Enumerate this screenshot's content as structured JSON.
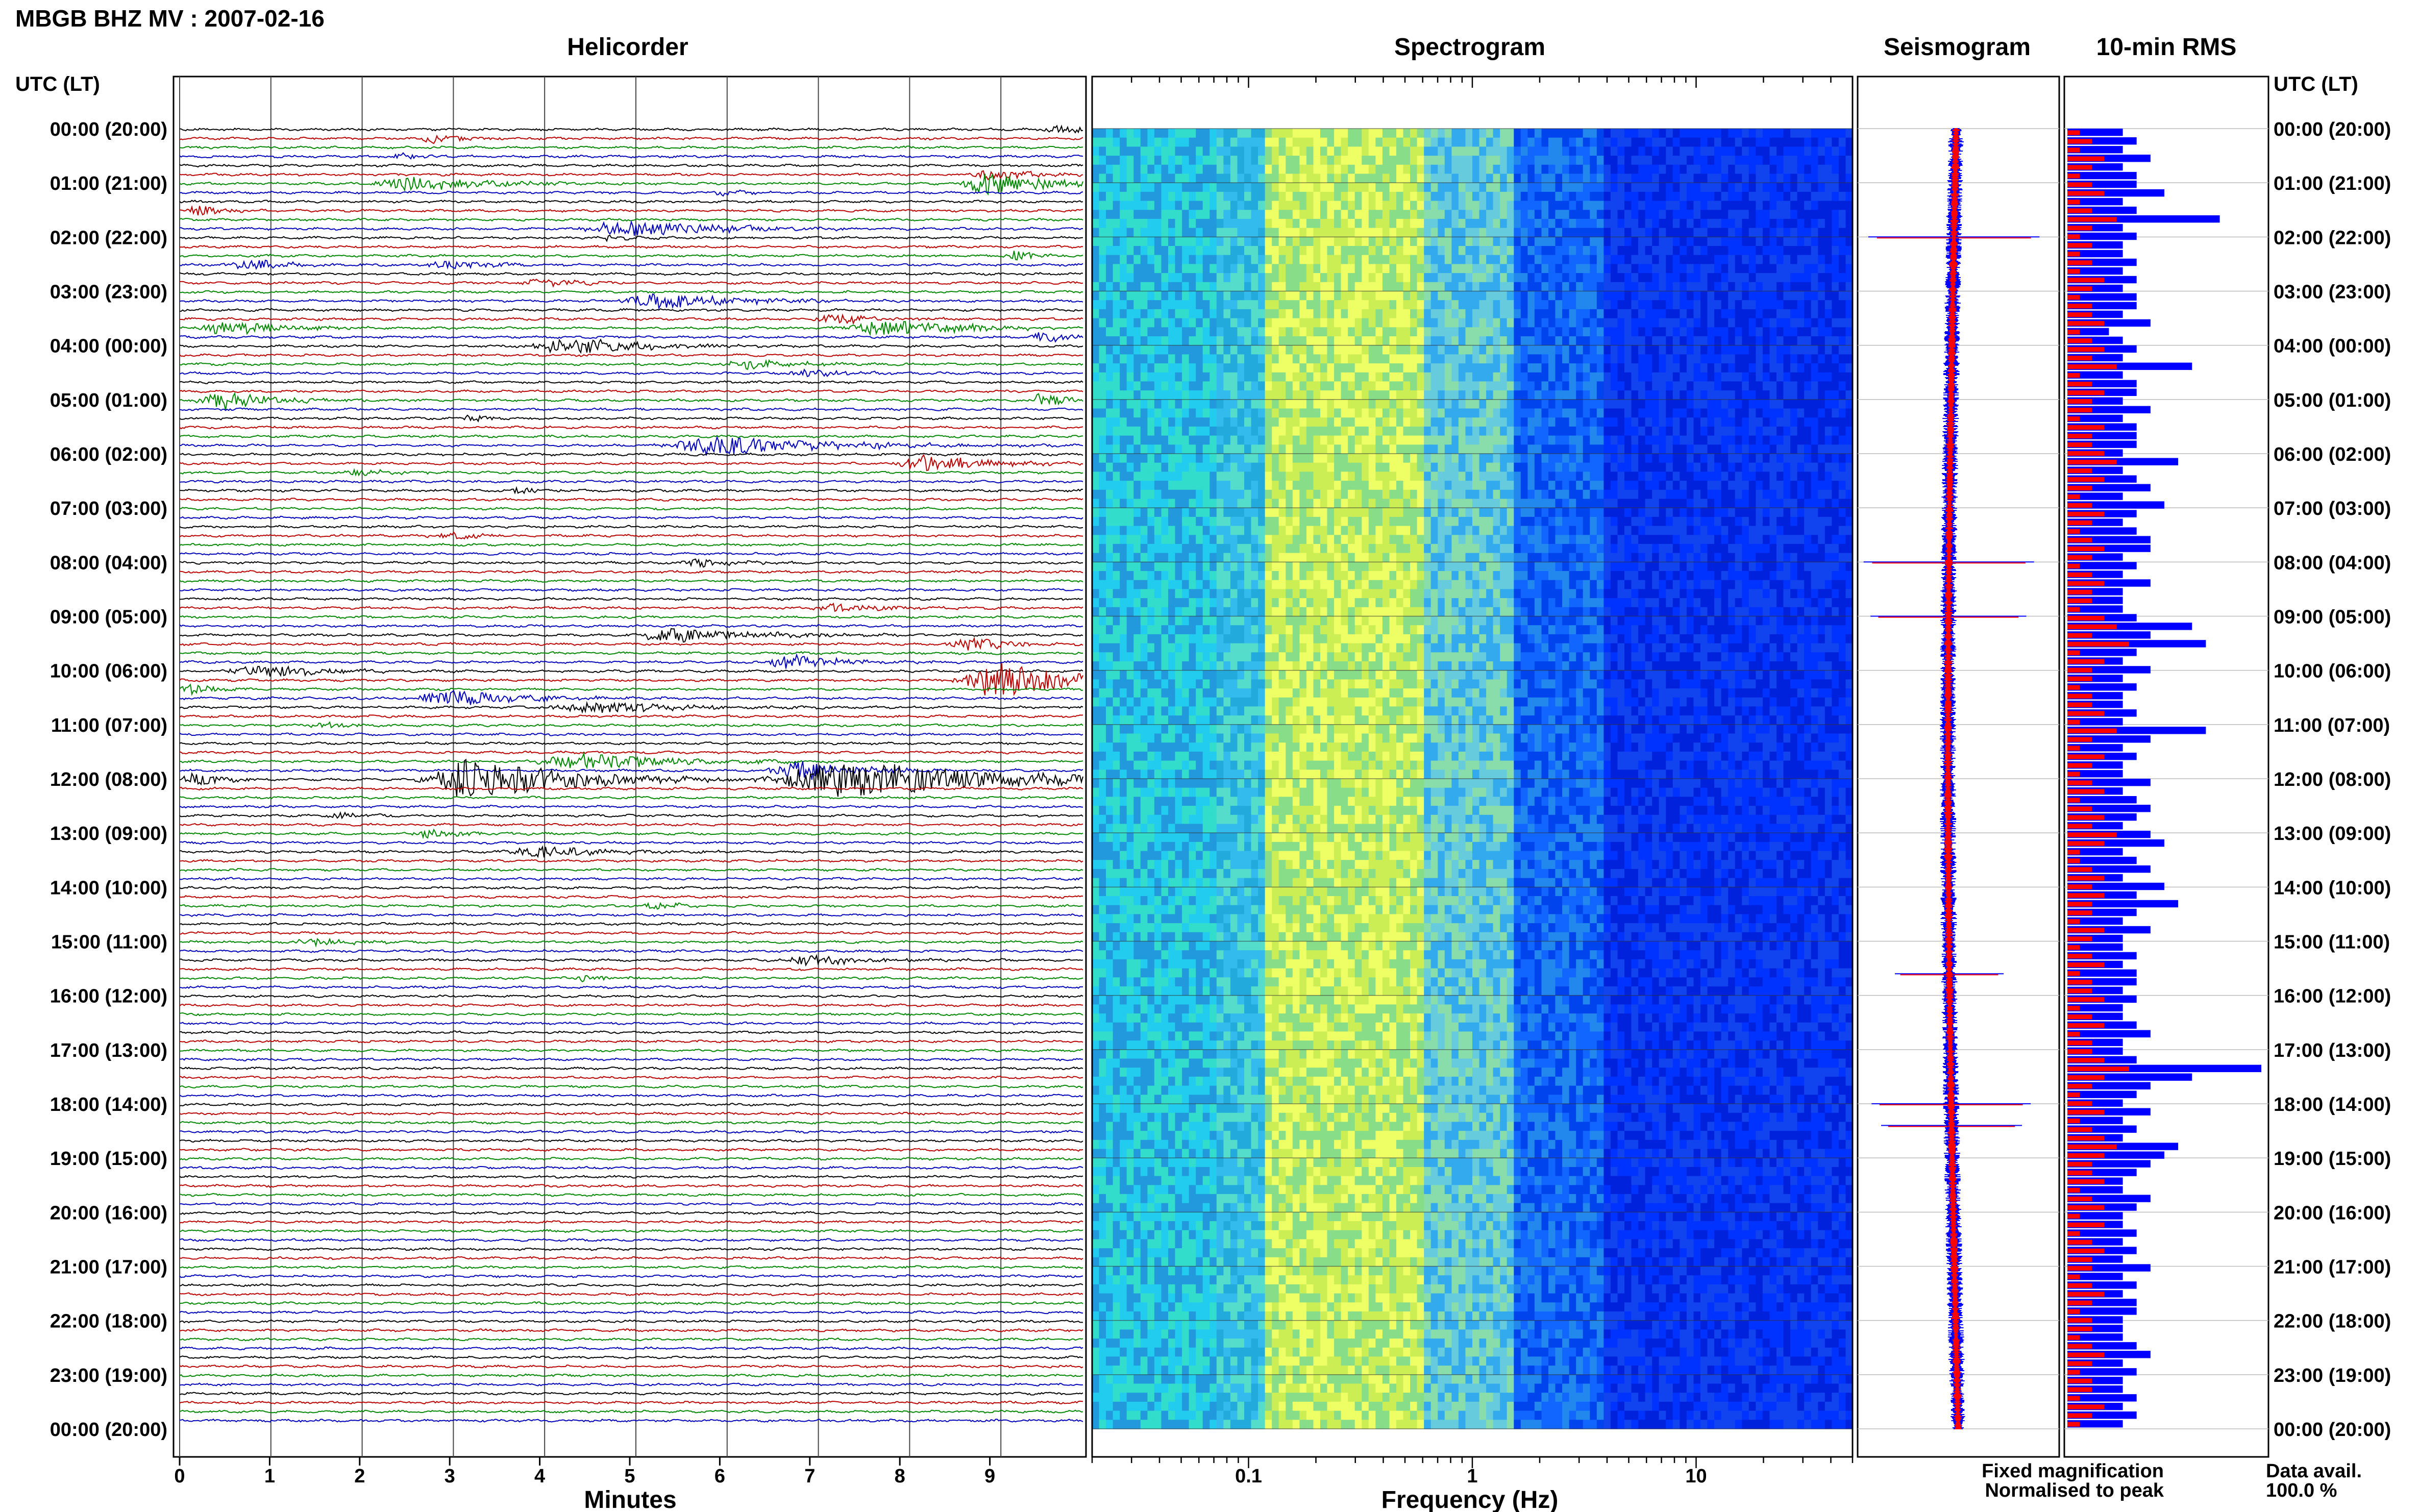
{
  "header": {
    "station_title": "MBGB BHZ MV : 2007-02-16"
  },
  "panels": {
    "helicorder": "Helicorder",
    "spectrogram": "Spectrogram",
    "seismogram": "Seismogram",
    "rms": "10-min RMS"
  },
  "axis": {
    "utc_header": "UTC (LT)",
    "minutes_label": "Minutes",
    "frequency_label": "Frequency (Hz)"
  },
  "legend": {
    "fixed": "Fixed magnification",
    "normalised": "Normalised to peak",
    "fixed_color": "#0000ff",
    "normalised_color": "#ff0000"
  },
  "data_avail": {
    "label": "Data avail.",
    "value": "100.0 %"
  },
  "chart_data": [
    {
      "type": "line",
      "name": "Helicorder",
      "x_ticks": [
        "0",
        "1",
        "2",
        "3",
        "4",
        "5",
        "6",
        "7",
        "8",
        "9"
      ],
      "x_range": [
        0,
        10
      ],
      "y_ticks": [
        "00:00 (20:00)",
        "01:00 (21:00)",
        "02:00 (22:00)",
        "03:00 (23:00)",
        "04:00 (00:00)",
        "05:00 (01:00)",
        "06:00 (02:00)",
        "07:00 (03:00)",
        "08:00 (04:00)",
        "09:00 (05:00)",
        "10:00 (06:00)",
        "11:00 (07:00)",
        "12:00 (08:00)",
        "13:00 (09:00)",
        "14:00 (10:00)",
        "15:00 (11:00)",
        "16:00 (12:00)",
        "17:00 (13:00)",
        "18:00 (14:00)",
        "19:00 (15:00)",
        "20:00 (16:00)",
        "21:00 (17:00)",
        "22:00 (18:00)",
        "23:00 (19:00)",
        "00:00 (20:00)"
      ],
      "trace_colors": [
        "#000000",
        "#bb0000",
        "#008800",
        "#0000bb"
      ],
      "traces_per_hour": 6,
      "events": [
        {
          "row": 0,
          "minute": 9.8,
          "amp": 1.4,
          "width": 0.4
        },
        {
          "row": 1,
          "minute": 2.8,
          "amp": 1.3,
          "width": 0.4
        },
        {
          "row": 3,
          "minute": 2.5,
          "amp": 1.2,
          "width": 0.3
        },
        {
          "row": 5,
          "minute": 9.0,
          "amp": 1.8,
          "width": 0.6
        },
        {
          "row": 6,
          "minute": 2.6,
          "amp": 2.2,
          "width": 1.0
        },
        {
          "row": 6,
          "minute": 9.0,
          "amp": 4.0,
          "width": 0.7
        },
        {
          "row": 7,
          "minute": 6.0,
          "amp": 1.2,
          "width": 0.3
        },
        {
          "row": 9,
          "minute": 0.2,
          "amp": 2.0,
          "width": 0.3
        },
        {
          "row": 11,
          "minute": 5.0,
          "amp": 2.6,
          "width": 1.2
        },
        {
          "row": 12,
          "minute": 4.8,
          "amp": 1.3,
          "width": 0.3
        },
        {
          "row": 14,
          "minute": 9.3,
          "amp": 1.6,
          "width": 0.3
        },
        {
          "row": 15,
          "minute": 3.0,
          "amp": 1.5,
          "width": 0.7
        },
        {
          "row": 15,
          "minute": 0.8,
          "amp": 1.6,
          "width": 0.6
        },
        {
          "row": 17,
          "minute": 4.0,
          "amp": 1.4,
          "width": 0.5
        },
        {
          "row": 19,
          "minute": 5.3,
          "amp": 2.6,
          "width": 1.0
        },
        {
          "row": 21,
          "minute": 7.3,
          "amp": 1.5,
          "width": 0.6
        },
        {
          "row": 22,
          "minute": 0.5,
          "amp": 3.2,
          "width": 0.6
        },
        {
          "row": 22,
          "minute": 7.8,
          "amp": 2.8,
          "width": 1.0
        },
        {
          "row": 23,
          "minute": 9.6,
          "amp": 2.0,
          "width": 0.3
        },
        {
          "row": 24,
          "minute": 4.3,
          "amp": 2.8,
          "width": 1.0
        },
        {
          "row": 26,
          "minute": 6.3,
          "amp": 1.6,
          "width": 0.6
        },
        {
          "row": 27,
          "minute": 7.0,
          "amp": 1.3,
          "width": 0.5
        },
        {
          "row": 30,
          "minute": 0.5,
          "amp": 3.0,
          "width": 0.6
        },
        {
          "row": 30,
          "minute": 9.6,
          "amp": 2.6,
          "width": 0.3
        },
        {
          "row": 32,
          "minute": 3.2,
          "amp": 1.2,
          "width": 0.3
        },
        {
          "row": 35,
          "minute": 6.0,
          "amp": 3.2,
          "width": 1.4
        },
        {
          "row": 37,
          "minute": 8.3,
          "amp": 2.6,
          "width": 0.8
        },
        {
          "row": 38,
          "minute": 2.0,
          "amp": 1.3,
          "width": 0.4
        },
        {
          "row": 40,
          "minute": 3.8,
          "amp": 1.3,
          "width": 0.3
        },
        {
          "row": 45,
          "minute": 3.0,
          "amp": 1.2,
          "width": 0.5
        },
        {
          "row": 48,
          "minute": 5.8,
          "amp": 1.4,
          "width": 0.5
        },
        {
          "row": 53,
          "minute": 7.3,
          "amp": 1.5,
          "width": 0.6
        },
        {
          "row": 56,
          "minute": 5.5,
          "amp": 2.4,
          "width": 1.0
        },
        {
          "row": 57,
          "minute": 8.8,
          "amp": 2.0,
          "width": 0.6
        },
        {
          "row": 59,
          "minute": 6.8,
          "amp": 2.2,
          "width": 0.7
        },
        {
          "row": 60,
          "minute": 0.9,
          "amp": 2.0,
          "width": 0.8
        },
        {
          "row": 61,
          "minute": 9.1,
          "amp": 6.5,
          "width": 0.9
        },
        {
          "row": 62,
          "minute": 0.1,
          "amp": 2.0,
          "width": 0.3
        },
        {
          "row": 63,
          "minute": 3.0,
          "amp": 2.4,
          "width": 0.9
        },
        {
          "row": 64,
          "minute": 4.6,
          "amp": 1.8,
          "width": 1.2
        },
        {
          "row": 66,
          "minute": 1.6,
          "amp": 1.2,
          "width": 0.3
        },
        {
          "row": 70,
          "minute": 4.5,
          "amp": 2.6,
          "width": 1.2
        },
        {
          "row": 71,
          "minute": 6.9,
          "amp": 3.2,
          "width": 0.8
        },
        {
          "row": 72,
          "minute": 3.3,
          "amp": 7.0,
          "width": 1.2
        },
        {
          "row": 72,
          "minute": 7.5,
          "amp": 6.0,
          "width": 2.0
        },
        {
          "row": 72,
          "minute": 0.2,
          "amp": 2.0,
          "width": 0.4
        },
        {
          "row": 76,
          "minute": 1.8,
          "amp": 1.2,
          "width": 0.3
        },
        {
          "row": 78,
          "minute": 2.8,
          "amp": 1.4,
          "width": 0.5
        },
        {
          "row": 80,
          "minute": 4.0,
          "amp": 2.0,
          "width": 0.8
        },
        {
          "row": 86,
          "minute": 5.3,
          "amp": 1.3,
          "width": 0.3
        },
        {
          "row": 90,
          "minute": 1.5,
          "amp": 1.3,
          "width": 0.5
        },
        {
          "row": 92,
          "minute": 7.0,
          "amp": 1.6,
          "width": 0.8
        },
        {
          "row": 94,
          "minute": 4.5,
          "amp": 1.2,
          "width": 0.3
        }
      ]
    },
    {
      "type": "heatmap",
      "name": "Spectrogram",
      "x_scale": "log",
      "x_range": [
        0.02,
        50
      ],
      "x_ticks": [
        "0.1",
        "1",
        "10"
      ],
      "colormap": [
        "#00ffff",
        "#33cccc",
        "#ffff66",
        "#88ee88",
        "#00aaff",
        "#0000ff"
      ]
    },
    {
      "type": "line",
      "name": "Seismogram",
      "series": [
        {
          "name": "Fixed magnification",
          "color": "#0000ff"
        },
        {
          "name": "Normalised to peak",
          "color": "#ff0000"
        }
      ],
      "spikes_at_hour": [
        2.0,
        8.0,
        9.0,
        15.6,
        18.0,
        18.4
      ]
    },
    {
      "type": "bar",
      "name": "10-min RMS",
      "series": [
        {
          "name": "Fixed magnification",
          "color": "#0000ff",
          "values": [
            4,
            5,
            4,
            6,
            4,
            5,
            5,
            7,
            4,
            5,
            11,
            4,
            5,
            4,
            4,
            5,
            4,
            5,
            4,
            5,
            5,
            4,
            6,
            3,
            4,
            5,
            4,
            9,
            4,
            5,
            5,
            4,
            6,
            4,
            5,
            5,
            5,
            4,
            8,
            4,
            5,
            6,
            4,
            7,
            5,
            4,
            5,
            6,
            6,
            4,
            5,
            4,
            6,
            4,
            4,
            4,
            5,
            9,
            6,
            10,
            5,
            4,
            6,
            4,
            5,
            4,
            4,
            5,
            4,
            10,
            6,
            4,
            5,
            4,
            4,
            6,
            4,
            5,
            6,
            5,
            4,
            6,
            7,
            4,
            5,
            6,
            4,
            7,
            5,
            8,
            5,
            4,
            6,
            4,
            4,
            5,
            4,
            5,
            5,
            4,
            5,
            4,
            4,
            5,
            6,
            4,
            4,
            5,
            14,
            9,
            6,
            5,
            4,
            6,
            4,
            5,
            4,
            8,
            7,
            6,
            5,
            4,
            4,
            6,
            5,
            4,
            4,
            5,
            4,
            5,
            4,
            6,
            4,
            5,
            4,
            5,
            5,
            4,
            4,
            4,
            5,
            6,
            4,
            5,
            4,
            4,
            5,
            4,
            5,
            4
          ]
        },
        {
          "name": "Normalised to peak",
          "color": "#ff0000",
          "values": [
            1,
            2,
            1,
            3,
            2,
            1,
            2,
            3,
            1,
            2,
            4,
            2,
            1,
            2,
            1,
            2,
            1,
            3,
            2,
            1,
            2,
            2,
            3,
            1,
            2,
            3,
            2,
            4,
            1,
            2,
            3,
            2,
            2,
            1,
            3,
            2,
            2,
            3,
            4,
            2,
            3,
            2,
            1,
            2,
            3,
            2,
            1,
            2,
            3,
            2,
            1,
            2,
            3,
            2,
            2,
            1,
            3,
            4,
            2,
            5,
            1,
            3,
            2,
            2,
            1,
            2,
            2,
            3,
            1,
            4,
            2,
            1,
            3,
            2,
            1,
            2,
            3,
            1,
            2,
            3,
            2,
            4,
            3,
            1,
            1,
            2,
            3,
            2,
            3,
            2,
            2,
            1,
            3,
            2,
            1,
            2,
            3,
            1,
            2,
            2,
            3,
            1,
            2,
            3,
            1,
            2,
            2,
            3,
            5,
            3,
            2,
            1,
            2,
            3,
            1,
            2,
            3,
            4,
            3,
            2,
            2,
            3,
            1,
            2,
            3,
            1,
            3,
            1,
            2,
            3,
            2,
            2,
            1,
            2,
            3,
            2,
            1,
            2,
            2,
            1,
            2,
            3,
            2,
            1,
            2,
            2,
            1,
            3,
            2,
            1
          ]
        }
      ]
    }
  ]
}
